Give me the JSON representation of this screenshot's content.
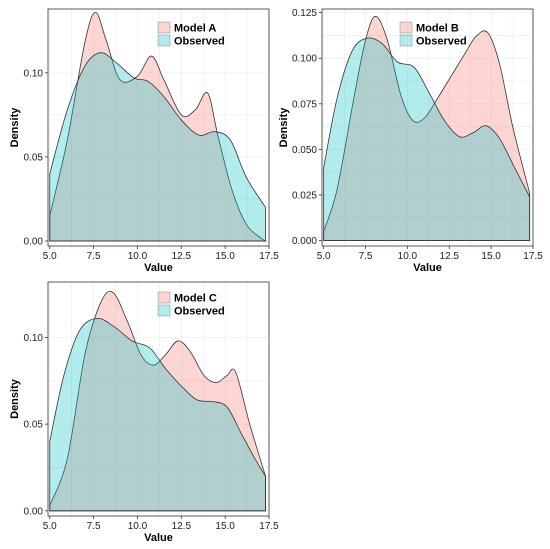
{
  "chart_data": [
    {
      "type": "area",
      "xlabel": "Value",
      "ylabel": "Density",
      "xlim": [
        4.9,
        17.5
      ],
      "ylim": [
        -0.003,
        0.138
      ],
      "xticks": [
        "5.0",
        "7.5",
        "10.0",
        "12.5",
        "15.0",
        "17.5"
      ],
      "yticks": [
        "0.00",
        "0.05",
        "0.10"
      ],
      "legend_position": "top-center",
      "series": [
        {
          "name": "Model A",
          "color": "#f8766d",
          "x": [
            5.0,
            6.0,
            7.0,
            7.6,
            8.2,
            9.0,
            10.0,
            10.8,
            11.5,
            12.5,
            13.3,
            14.0,
            14.6,
            15.4,
            16.2,
            17.0,
            17.3
          ],
          "y": [
            0.015,
            0.06,
            0.118,
            0.136,
            0.12,
            0.096,
            0.098,
            0.11,
            0.096,
            0.075,
            0.078,
            0.088,
            0.062,
            0.03,
            0.01,
            0.002,
            0.0
          ]
        },
        {
          "name": "Observed",
          "color": "#00bfc4",
          "x": [
            5.0,
            6.0,
            7.0,
            7.9,
            8.8,
            9.8,
            10.6,
            11.5,
            12.5,
            13.5,
            14.4,
            15.3,
            16.2,
            17.3
          ],
          "y": [
            0.04,
            0.078,
            0.104,
            0.112,
            0.106,
            0.097,
            0.095,
            0.086,
            0.072,
            0.063,
            0.065,
            0.06,
            0.038,
            0.02
          ]
        }
      ]
    },
    {
      "type": "area",
      "xlabel": "Value",
      "ylabel": "Density",
      "xlim": [
        4.9,
        17.5
      ],
      "ylim": [
        -0.003,
        0.127
      ],
      "xticks": [
        "5.0",
        "7.5",
        "10.0",
        "12.5",
        "15.0",
        "17.5"
      ],
      "yticks": [
        "0.000",
        "0.025",
        "0.050",
        "0.075",
        "0.100",
        "0.125"
      ],
      "legend_position": "top-right",
      "series": [
        {
          "name": "Model B",
          "color": "#f8766d",
          "x": [
            5.0,
            5.8,
            6.8,
            7.5,
            8.1,
            8.8,
            9.6,
            10.3,
            11.0,
            11.8,
            12.6,
            13.4,
            14.1,
            14.8,
            15.5,
            16.3,
            17.3
          ],
          "y": [
            0.005,
            0.028,
            0.078,
            0.11,
            0.123,
            0.11,
            0.08,
            0.066,
            0.067,
            0.078,
            0.09,
            0.102,
            0.112,
            0.114,
            0.097,
            0.062,
            0.026
          ]
        },
        {
          "name": "Observed",
          "color": "#00bfc4",
          "x": [
            5.0,
            5.8,
            6.7,
            7.6,
            8.5,
            9.4,
            10.4,
            11.3,
            12.2,
            13.1,
            13.9,
            14.7,
            15.5,
            16.4,
            17.3
          ],
          "y": [
            0.04,
            0.078,
            0.104,
            0.111,
            0.108,
            0.098,
            0.095,
            0.081,
            0.066,
            0.057,
            0.059,
            0.063,
            0.056,
            0.04,
            0.024
          ]
        }
      ]
    },
    {
      "type": "area",
      "xlabel": "Value",
      "ylabel": "Density",
      "xlim": [
        4.9,
        17.5
      ],
      "ylim": [
        -0.003,
        0.132
      ],
      "xticks": [
        "5.0",
        "7.5",
        "10.0",
        "12.5",
        "15.0",
        "17.5"
      ],
      "yticks": [
        "0.00",
        "0.05",
        "0.10"
      ],
      "legend_position": "top-center",
      "series": [
        {
          "name": "Model C",
          "color": "#f8766d",
          "x": [
            5.0,
            6.0,
            7.0,
            7.9,
            8.6,
            9.4,
            10.2,
            10.9,
            11.6,
            12.3,
            13.0,
            13.8,
            14.5,
            15.1,
            15.6,
            16.4,
            17.3
          ],
          "y": [
            0.003,
            0.03,
            0.09,
            0.12,
            0.126,
            0.11,
            0.09,
            0.084,
            0.09,
            0.098,
            0.092,
            0.078,
            0.074,
            0.078,
            0.08,
            0.05,
            0.02
          ]
        },
        {
          "name": "Observed",
          "color": "#00bfc4",
          "x": [
            5.0,
            5.8,
            6.7,
            7.7,
            8.7,
            9.7,
            10.7,
            11.6,
            12.5,
            13.4,
            14.3,
            15.1,
            15.9,
            16.7,
            17.3
          ],
          "y": [
            0.04,
            0.078,
            0.104,
            0.111,
            0.106,
            0.098,
            0.094,
            0.082,
            0.072,
            0.064,
            0.063,
            0.06,
            0.045,
            0.03,
            0.02
          ]
        }
      ]
    }
  ]
}
